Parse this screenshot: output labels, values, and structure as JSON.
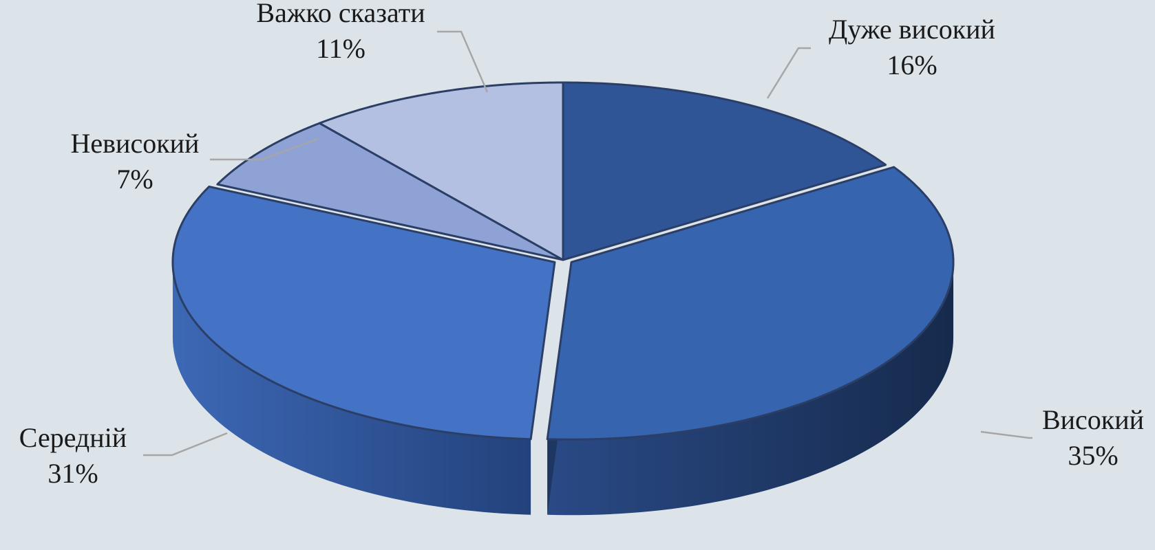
{
  "chart_data": {
    "type": "pie",
    "title": "",
    "slices": [
      {
        "label": "Дуже високий",
        "value": 16,
        "display": "16%",
        "color": "#2f5597"
      },
      {
        "label": "Високий",
        "value": 35,
        "display": "35%",
        "color": "#3764ae"
      },
      {
        "label": "Середній",
        "value": 31,
        "display": "31%",
        "color": "#4472c4"
      },
      {
        "label": "Невисокий",
        "value": 7,
        "display": "7%",
        "color": "#8ea2d6"
      },
      {
        "label": "Важко сказати",
        "value": 11,
        "display": "11%",
        "color": "#b4c0e2"
      }
    ],
    "three_d": true,
    "data_labels": "outside-with-leader-lines"
  }
}
